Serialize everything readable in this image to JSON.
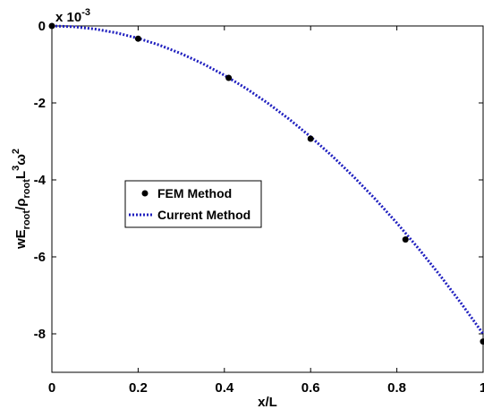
{
  "chart_data": {
    "type": "line",
    "title": "",
    "xlabel": "x/L",
    "ylabel": {
      "base": "wE",
      "sub1": "root",
      "mid": "/ρ",
      "sub2": "root",
      "base2": "L",
      "sup1": "3",
      "omega": "ω",
      "sup2": "2"
    },
    "y_multiplier": {
      "base": "x 10",
      "exponent": "-3"
    },
    "xlim": [
      0,
      1
    ],
    "ylim": [
      -9,
      0
    ],
    "x_ticks": [
      0,
      0.2,
      0.4,
      0.6,
      0.8,
      1
    ],
    "x_tick_labels": [
      "0",
      "0.2",
      "0.4",
      "0.6",
      "0.8",
      "1"
    ],
    "y_ticks": [
      0,
      -2,
      -4,
      -6,
      -8
    ],
    "y_tick_labels": [
      "0",
      "-2",
      "-4",
      "-6",
      "-8"
    ],
    "grid": false,
    "legend_position": "center-left",
    "series": [
      {
        "name": "FEM Method",
        "style": "markers",
        "color": "#000000",
        "x": [
          0,
          0.2,
          0.41,
          0.6,
          0.82,
          1.0
        ],
        "y": [
          0,
          -0.33,
          -1.35,
          -2.93,
          -5.55,
          -8.2
        ]
      },
      {
        "name": "Current Method",
        "style": "dotted-line",
        "color": "#1f1fbf",
        "x": [
          0,
          0.05,
          0.1,
          0.15,
          0.2,
          0.25,
          0.3,
          0.35,
          0.4,
          0.45,
          0.5,
          0.55,
          0.6,
          0.65,
          0.7,
          0.75,
          0.8,
          0.85,
          0.9,
          0.95,
          1.0
        ],
        "y": [
          0,
          -0.02,
          -0.08,
          -0.18,
          -0.32,
          -0.5,
          -0.72,
          -0.98,
          -1.28,
          -1.62,
          -2.0,
          -2.42,
          -2.88,
          -3.38,
          -3.92,
          -4.5,
          -5.12,
          -5.78,
          -6.48,
          -7.22,
          -8.0
        ]
      }
    ]
  }
}
